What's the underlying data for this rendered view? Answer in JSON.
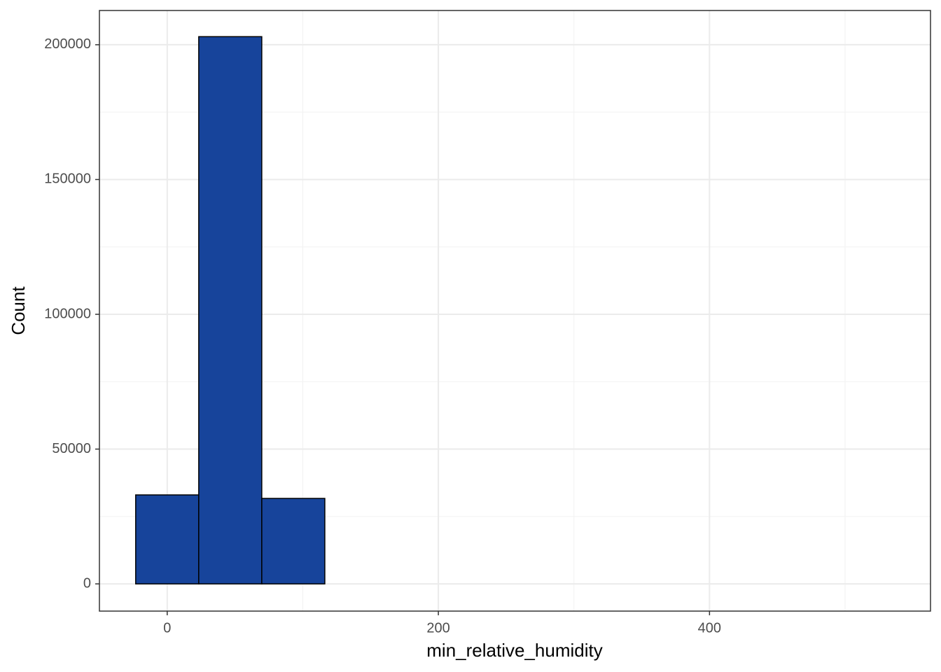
{
  "chart_data": {
    "type": "histogram",
    "x_label": "min_relative_humidity",
    "y_label": "Count",
    "bins": [
      -23.25,
      23.25,
      69.75,
      116.25,
      162.75,
      209.25,
      255.75,
      302.25,
      348.75,
      395.25,
      441.75,
      488.25,
      534.75
    ],
    "counts": [
      33000,
      203000,
      31700,
      0,
      0,
      0,
      0,
      0,
      0,
      0,
      0,
      0
    ],
    "color": "#17449b",
    "xlim": [
      -50,
      563
    ],
    "ylim": [
      -10100,
      212700
    ],
    "xticks": [
      0,
      200,
      400
    ],
    "yticks": [
      0,
      50000,
      100000,
      150000,
      200000
    ],
    "xminor": [
      100,
      300,
      500
    ],
    "yminor": [
      25000,
      75000,
      125000,
      175000
    ],
    "grid": true
  }
}
